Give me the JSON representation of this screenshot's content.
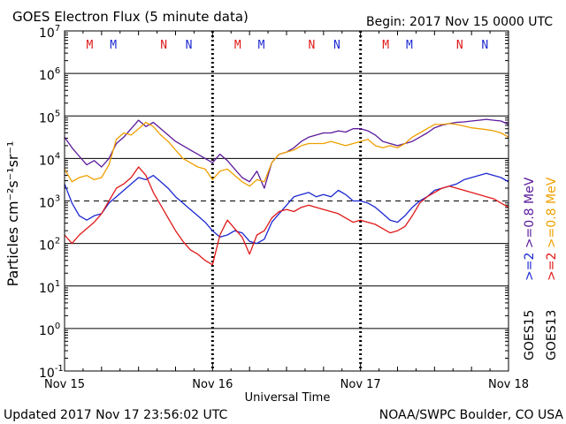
{
  "title": "GOES Electron Flux (5 minute data)",
  "begin_label": "Begin: 2017 Nov 15 0000 UTC",
  "updated_label": "Updated 2017 Nov 17 23:56:02 UTC",
  "credit_label": "NOAA/SWPC Boulder, CO USA",
  "colors": {
    "goes15_high": "#5b1a9c",
    "goes13_high": "#f0a000",
    "goes15_low": "#1c28d0",
    "goes13_low": "#e01818",
    "marker_M": "#e01818",
    "marker_N_red": "#e01818",
    "marker_N_blue": "#1c28d0",
    "marker_M_blue": "#1c28d0"
  },
  "chart_data": {
    "type": "line",
    "title": "GOES Electron Flux (5 minute data)",
    "xlabel": "Universal Time",
    "ylabel": "Particles cm⁻²s⁻¹sr⁻¹",
    "x_unit": "days since 2017 Nov 15 0000 UTC",
    "xlim": [
      0,
      3
    ],
    "ylim_log10": [
      -1,
      7
    ],
    "log_scale_y": true,
    "x_tick_labels": [
      "Nov 15",
      "Nov 16",
      "Nov 17",
      "Nov 18"
    ],
    "y_tick_labels": [
      {
        "base": "10",
        "exp": "7"
      },
      {
        "base": "10",
        "exp": "6"
      },
      {
        "base": "10",
        "exp": "5"
      },
      {
        "base": "10",
        "exp": "4"
      },
      {
        "base": "10",
        "exp": "3"
      },
      {
        "base": "10",
        "exp": "2"
      },
      {
        "base": "10",
        "exp": "1"
      },
      {
        "base": "10",
        "exp": "0"
      },
      {
        "base": "10",
        "exp": "-1"
      }
    ],
    "threshold_log10": 3,
    "grid": true,
    "local_time_markers": [
      {
        "label": "M",
        "day": 0.17,
        "color": "#e01818"
      },
      {
        "label": "M",
        "day": 0.33,
        "color": "#1c28d0"
      },
      {
        "label": "N",
        "day": 0.67,
        "color": "#e01818"
      },
      {
        "label": "N",
        "day": 0.84,
        "color": "#1c28d0"
      },
      {
        "label": "M",
        "day": 1.17,
        "color": "#e01818"
      },
      {
        "label": "M",
        "day": 1.33,
        "color": "#1c28d0"
      },
      {
        "label": "N",
        "day": 1.67,
        "color": "#e01818"
      },
      {
        "label": "N",
        "day": 1.84,
        "color": "#1c28d0"
      },
      {
        "label": "M",
        "day": 2.17,
        "color": "#e01818"
      },
      {
        "label": "M",
        "day": 2.33,
        "color": "#1c28d0"
      },
      {
        "label": "N",
        "day": 2.67,
        "color": "#e01818"
      },
      {
        "label": "N",
        "day": 2.84,
        "color": "#1c28d0"
      }
    ],
    "legend": {
      "right_line1": [
        {
          "text": ">=2",
          "color": "#1c28d0"
        },
        {
          "text": ">=0.8 MeV",
          "color": "#5b1a9c"
        }
      ],
      "right_line2": [
        {
          "text": ">=2",
          "color": "#e01818"
        },
        {
          "text": ">=0.8 MeV",
          "color": "#f0a000"
        }
      ],
      "sat1": "GOES15",
      "sat2": "GOES13"
    },
    "series": [
      {
        "name": "GOES15 >=0.8 MeV",
        "color": "#5b1a9c",
        "x": [
          0,
          0.05,
          0.1,
          0.15,
          0.2,
          0.25,
          0.3,
          0.35,
          0.4,
          0.45,
          0.5,
          0.55,
          0.6,
          0.65,
          0.7,
          0.75,
          0.8,
          0.85,
          0.9,
          0.95,
          1.0,
          1.05,
          1.1,
          1.15,
          1.2,
          1.25,
          1.3,
          1.35,
          1.4,
          1.45,
          1.5,
          1.55,
          1.6,
          1.65,
          1.7,
          1.75,
          1.8,
          1.85,
          1.9,
          1.95,
          2.0,
          2.05,
          2.1,
          2.15,
          2.2,
          2.25,
          2.3,
          2.35,
          2.4,
          2.45,
          2.5,
          2.55,
          2.6,
          2.65,
          2.7,
          2.75,
          2.8,
          2.85,
          2.9,
          2.95,
          3.0
        ],
        "y_log10": [
          4.5,
          4.25,
          4.05,
          3.85,
          3.95,
          3.8,
          4.0,
          4.35,
          4.5,
          4.7,
          4.9,
          4.75,
          4.85,
          4.7,
          4.55,
          4.4,
          4.3,
          4.2,
          4.1,
          4.0,
          3.9,
          4.1,
          3.95,
          3.75,
          3.55,
          3.45,
          3.7,
          3.3,
          3.9,
          4.1,
          4.15,
          4.25,
          4.4,
          4.5,
          4.55,
          4.6,
          4.6,
          4.65,
          4.62,
          4.7,
          4.7,
          4.65,
          4.55,
          4.4,
          4.35,
          4.3,
          4.35,
          4.4,
          4.5,
          4.6,
          4.72,
          4.78,
          4.82,
          4.85,
          4.86,
          4.88,
          4.9,
          4.92,
          4.9,
          4.88,
          4.8
        ]
      },
      {
        "name": "GOES13 >=0.8 MeV",
        "color": "#f0a000",
        "x": [
          0,
          0.05,
          0.1,
          0.15,
          0.2,
          0.25,
          0.3,
          0.35,
          0.4,
          0.45,
          0.5,
          0.55,
          0.6,
          0.65,
          0.7,
          0.75,
          0.8,
          0.85,
          0.9,
          0.95,
          1.0,
          1.05,
          1.1,
          1.15,
          1.2,
          1.25,
          1.3,
          1.35,
          1.4,
          1.45,
          1.5,
          1.55,
          1.6,
          1.65,
          1.7,
          1.75,
          1.8,
          1.85,
          1.9,
          1.95,
          2.0,
          2.05,
          2.1,
          2.15,
          2.2,
          2.25,
          2.3,
          2.35,
          2.4,
          2.45,
          2.5,
          2.55,
          2.6,
          2.65,
          2.7,
          2.75,
          2.8,
          2.85,
          2.9,
          2.95,
          3.0
        ],
        "y_log10": [
          3.75,
          3.45,
          3.55,
          3.6,
          3.5,
          3.55,
          3.85,
          4.45,
          4.6,
          4.55,
          4.7,
          4.85,
          4.75,
          4.55,
          4.4,
          4.2,
          4.0,
          3.9,
          3.8,
          3.75,
          3.5,
          3.7,
          3.75,
          3.6,
          3.45,
          3.35,
          3.5,
          3.45,
          3.9,
          4.1,
          4.15,
          4.2,
          4.3,
          4.35,
          4.35,
          4.35,
          4.4,
          4.35,
          4.3,
          4.35,
          4.4,
          4.45,
          4.3,
          4.25,
          4.3,
          4.25,
          4.35,
          4.5,
          4.6,
          4.7,
          4.8,
          4.8,
          4.82,
          4.8,
          4.76,
          4.72,
          4.7,
          4.68,
          4.65,
          4.6,
          4.5
        ]
      },
      {
        "name": "GOES15 >=2 MeV",
        "color": "#1c28d0",
        "x": [
          0,
          0.05,
          0.1,
          0.15,
          0.2,
          0.25,
          0.3,
          0.35,
          0.4,
          0.45,
          0.5,
          0.55,
          0.6,
          0.65,
          0.7,
          0.75,
          0.8,
          0.85,
          0.9,
          0.95,
          1.0,
          1.05,
          1.1,
          1.15,
          1.2,
          1.25,
          1.3,
          1.35,
          1.4,
          1.45,
          1.5,
          1.55,
          1.6,
          1.65,
          1.7,
          1.75,
          1.8,
          1.85,
          1.9,
          1.95,
          2.0,
          2.05,
          2.1,
          2.15,
          2.2,
          2.25,
          2.3,
          2.35,
          2.4,
          2.45,
          2.5,
          2.55,
          2.6,
          2.65,
          2.7,
          2.75,
          2.8,
          2.85,
          2.9,
          2.95,
          3.0
        ],
        "y_log10": [
          3.4,
          2.95,
          2.65,
          2.55,
          2.65,
          2.7,
          2.95,
          3.1,
          3.25,
          3.4,
          3.55,
          3.5,
          3.6,
          3.45,
          3.3,
          3.1,
          2.95,
          2.8,
          2.65,
          2.5,
          2.3,
          2.15,
          2.2,
          2.3,
          2.25,
          2.05,
          2.0,
          2.1,
          2.5,
          2.7,
          2.9,
          3.1,
          3.15,
          3.2,
          3.1,
          3.15,
          3.1,
          3.25,
          3.15,
          3.0,
          3.0,
          2.95,
          2.85,
          2.7,
          2.55,
          2.5,
          2.65,
          2.85,
          3.0,
          3.1,
          3.25,
          3.3,
          3.35,
          3.4,
          3.5,
          3.55,
          3.6,
          3.65,
          3.6,
          3.55,
          3.45
        ]
      },
      {
        "name": "GOES13 >=2 MeV",
        "color": "#e01818",
        "x": [
          0,
          0.05,
          0.1,
          0.15,
          0.2,
          0.25,
          0.3,
          0.35,
          0.4,
          0.45,
          0.5,
          0.55,
          0.6,
          0.65,
          0.7,
          0.75,
          0.8,
          0.85,
          0.9,
          0.95,
          1.0,
          1.05,
          1.1,
          1.15,
          1.2,
          1.25,
          1.3,
          1.35,
          1.4,
          1.45,
          1.5,
          1.55,
          1.6,
          1.65,
          1.7,
          1.75,
          1.8,
          1.85,
          1.9,
          1.95,
          2.0,
          2.05,
          2.1,
          2.15,
          2.2,
          2.25,
          2.3,
          2.35,
          2.4,
          2.45,
          2.5,
          2.55,
          2.6,
          2.65,
          2.7,
          2.75,
          2.8,
          2.85,
          2.9,
          2.95,
          3.0
        ],
        "y_log10": [
          2.2,
          2.0,
          2.2,
          2.35,
          2.5,
          2.7,
          3.0,
          3.3,
          3.4,
          3.55,
          3.8,
          3.6,
          3.2,
          2.9,
          2.6,
          2.3,
          2.05,
          1.85,
          1.75,
          1.6,
          1.5,
          2.2,
          2.55,
          2.35,
          2.15,
          1.75,
          2.2,
          2.3,
          2.6,
          2.75,
          2.8,
          2.75,
          2.85,
          2.9,
          2.85,
          2.8,
          2.75,
          2.7,
          2.6,
          2.5,
          2.55,
          2.5,
          2.45,
          2.35,
          2.25,
          2.3,
          2.4,
          2.65,
          2.95,
          3.1,
          3.2,
          3.3,
          3.35,
          3.3,
          3.25,
          3.2,
          3.15,
          3.1,
          3.05,
          2.95,
          2.85
        ]
      }
    ]
  }
}
